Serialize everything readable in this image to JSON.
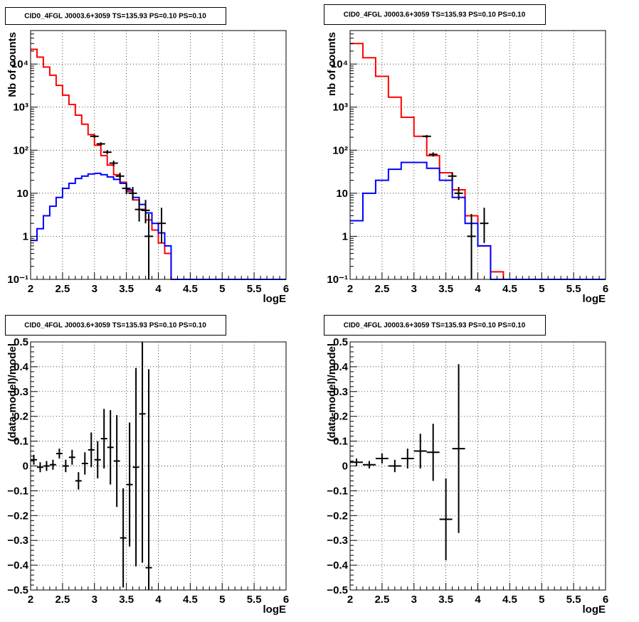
{
  "chart_data": [
    {
      "type": "histogram",
      "title": "CID0_4FGL J0003.6+3059 TS=135.93 PS=0.10 PS=0.10",
      "xlabel": "logE",
      "ylabel": "Nb of counts",
      "xlim": [
        2,
        6
      ],
      "ylim": [
        0.1,
        60000
      ],
      "yscale": "log",
      "grid": true,
      "xticks": [
        "2",
        "2.5",
        "3",
        "3.5",
        "4",
        "4.5",
        "5",
        "5.5",
        "6"
      ],
      "yticks": [
        {
          "v": 0.1,
          "label": "10⁻¹"
        },
        {
          "v": 1,
          "label": "1"
        },
        {
          "v": 10,
          "label": "10"
        },
        {
          "v": 100,
          "label": "10²"
        },
        {
          "v": 1000,
          "label": "10³"
        },
        {
          "v": 10000,
          "label": "10⁴"
        }
      ],
      "bin_edges": [
        2.0,
        2.1,
        2.2,
        2.3,
        2.4,
        2.5,
        2.6,
        2.7,
        2.8,
        2.9,
        3.0,
        3.1,
        3.2,
        3.3,
        3.4,
        3.5,
        3.6,
        3.7,
        3.8,
        3.9,
        4.0,
        4.1,
        4.2,
        4.3,
        4.4,
        4.5,
        4.6,
        4.7,
        4.8,
        4.9,
        5.0,
        5.1,
        5.2,
        5.3,
        5.4,
        5.5,
        5.6,
        5.7,
        5.8,
        5.9,
        6.0
      ],
      "series": [
        {
          "role": "model",
          "color": "#ff0000",
          "values": [
            22000,
            14500,
            8500,
            5500,
            3200,
            1900,
            1150,
            650,
            400,
            230,
            130,
            75,
            45,
            27,
            18,
            11,
            7,
            4.2,
            2.4,
            1.4,
            0.7,
            0.4,
            0.1,
            0.1,
            0.1,
            0.1,
            0.1,
            0.1,
            0.1,
            0.1,
            0.1,
            0.1,
            0.1,
            0.1,
            0.1,
            0.1,
            0.1,
            0.1,
            0.1,
            0.1
          ]
        },
        {
          "role": "source",
          "color": "#0000ff",
          "values": [
            0.8,
            1.5,
            3,
            5,
            8,
            13,
            17,
            22,
            25,
            28,
            29,
            27,
            24,
            21,
            17,
            12,
            8,
            5.5,
            3.5,
            2,
            1.2,
            0.6,
            0.1,
            0.1,
            0.1,
            0.1,
            0.1,
            0.1,
            0.1,
            0.1,
            0.1,
            0.1,
            0.1,
            0.1,
            0.1,
            0.1,
            0.1,
            0.1,
            0.1,
            0.1
          ]
        },
        {
          "role": "data",
          "color": "#000000",
          "points": [
            {
              "x": 3.0,
              "y": 210,
              "elo": 15,
              "ehi": 15
            },
            {
              "x": 3.1,
              "y": 140,
              "elo": 12,
              "ehi": 12
            },
            {
              "x": 3.2,
              "y": 90,
              "elo": 10,
              "ehi": 10
            },
            {
              "x": 3.3,
              "y": 50,
              "elo": 7,
              "ehi": 7
            },
            {
              "x": 3.4,
              "y": 25,
              "elo": 5,
              "ehi": 5
            },
            {
              "x": 3.5,
              "y": 13,
              "elo": 3.5,
              "ehi": 4
            },
            {
              "x": 3.6,
              "y": 10,
              "elo": 3,
              "ehi": 4
            },
            {
              "x": 3.7,
              "y": 4.2,
              "elo": 2,
              "ehi": 3
            },
            {
              "x": 3.8,
              "y": 4,
              "elo": 2,
              "ehi": 3
            },
            {
              "x": 3.85,
              "y": 1,
              "elo": 0.9,
              "ehi": 2.3
            },
            {
              "x": 4.05,
              "y": 2,
              "elo": 1.3,
              "ehi": 2.6
            }
          ]
        }
      ]
    },
    {
      "type": "histogram",
      "title": "CID0_4FGL J0003.6+3059 TS=135.93 PS=0.10 PS=0.10",
      "xlabel": "logE",
      "ylabel": "nb of counts",
      "xlim": [
        2,
        6
      ],
      "ylim": [
        0.1,
        60000
      ],
      "yscale": "log",
      "grid": true,
      "xticks": [
        "2",
        "2.5",
        "3",
        "3.5",
        "4",
        "4.5",
        "5",
        "5.5",
        "6"
      ],
      "yticks": [
        {
          "v": 0.1,
          "label": "10⁻¹"
        },
        {
          "v": 1,
          "label": "1"
        },
        {
          "v": 10,
          "label": "10"
        },
        {
          "v": 100,
          "label": "10²"
        },
        {
          "v": 1000,
          "label": "10³"
        },
        {
          "v": 10000,
          "label": "10⁴"
        }
      ],
      "bin_edges": [
        2.0,
        2.2,
        2.4,
        2.6,
        2.8,
        3.0,
        3.2,
        3.4,
        3.6,
        3.8,
        4.0,
        4.2,
        4.4,
        4.6,
        4.8,
        5.0,
        5.2,
        5.4,
        5.6,
        5.8,
        6.0
      ],
      "series": [
        {
          "role": "model",
          "color": "#ff0000",
          "values": [
            30000,
            14000,
            5200,
            1700,
            580,
            210,
            75,
            30,
            12,
            3,
            0.6,
            0.15,
            0.1,
            0.1,
            0.1,
            0.1,
            0.1,
            0.1,
            0.1,
            0.1
          ]
        },
        {
          "role": "source",
          "color": "#0000ff",
          "values": [
            2.3,
            10,
            20,
            36,
            52,
            52,
            38,
            20,
            8,
            2,
            0.6,
            0.1,
            0.1,
            0.1,
            0.1,
            0.1,
            0.1,
            0.1,
            0.1,
            0.1
          ]
        },
        {
          "role": "data",
          "color": "#000000",
          "points": [
            {
              "x": 3.2,
              "y": 210,
              "elo": 15,
              "ehi": 15
            },
            {
              "x": 3.3,
              "y": 80,
              "elo": 9,
              "ehi": 9
            },
            {
              "x": 3.6,
              "y": 25,
              "elo": 5,
              "ehi": 5
            },
            {
              "x": 3.7,
              "y": 10,
              "elo": 3,
              "ehi": 4
            },
            {
              "x": 3.9,
              "y": 1,
              "elo": 0.9,
              "ehi": 2.3
            },
            {
              "x": 4.1,
              "y": 2,
              "elo": 1.3,
              "ehi": 2.6
            }
          ]
        }
      ]
    },
    {
      "type": "scatter",
      "title": "CID0_4FGL J0003.6+3059 TS=135.93 PS=0.10 PS=0.10",
      "xlabel": "logE",
      "ylabel": "(data-model)/model",
      "xlim": [
        2,
        6
      ],
      "ylim": [
        -0.5,
        0.5
      ],
      "grid": true,
      "xticks": [
        "2",
        "2.5",
        "3",
        "3.5",
        "4",
        "4.5",
        "5",
        "5.5",
        "6"
      ],
      "yticks": [
        {
          "v": -0.5,
          "label": "−0.5"
        },
        {
          "v": -0.4,
          "label": "−0.4"
        },
        {
          "v": -0.3,
          "label": "−0.3"
        },
        {
          "v": -0.2,
          "label": "−0.2"
        },
        {
          "v": -0.1,
          "label": "−0.1"
        },
        {
          "v": 0,
          "label": "0"
        },
        {
          "v": 0.1,
          "label": "0.1"
        },
        {
          "v": 0.2,
          "label": "0.2"
        },
        {
          "v": 0.3,
          "label": "0.3"
        },
        {
          "v": 0.4,
          "label": "0.4"
        },
        {
          "v": 0.5,
          "label": "0.5"
        }
      ],
      "xerr": 0.05,
      "points": [
        {
          "x": 2.05,
          "y": 0.025,
          "e": 0.02
        },
        {
          "x": 2.15,
          "y": -0.005,
          "e": 0.02
        },
        {
          "x": 2.25,
          "y": 0.0,
          "e": 0.02
        },
        {
          "x": 2.35,
          "y": 0.005,
          "e": 0.02
        },
        {
          "x": 2.45,
          "y": 0.05,
          "e": 0.02
        },
        {
          "x": 2.55,
          "y": 0.0,
          "e": 0.025
        },
        {
          "x": 2.65,
          "y": 0.035,
          "e": 0.03
        },
        {
          "x": 2.75,
          "y": -0.06,
          "e": 0.035
        },
        {
          "x": 2.85,
          "y": 0.01,
          "e": 0.045
        },
        {
          "x": 2.95,
          "y": 0.065,
          "e": 0.07
        },
        {
          "x": 3.05,
          "y": 0.025,
          "e": 0.075
        },
        {
          "x": 3.15,
          "y": 0.11,
          "e": 0.12
        },
        {
          "x": 3.25,
          "y": 0.075,
          "e": 0.15
        },
        {
          "x": 3.35,
          "y": 0.02,
          "e": 0.185
        },
        {
          "x": 3.45,
          "y": -0.29,
          "e": 0.2
        },
        {
          "x": 3.55,
          "y": -0.075,
          "e": 0.25
        },
        {
          "x": 3.65,
          "y": -0.005,
          "e": 0.4
        },
        {
          "x": 3.75,
          "y": 0.21,
          "e": 0.6
        },
        {
          "x": 3.85,
          "y": -0.41,
          "e": 0.8
        }
      ]
    },
    {
      "type": "scatter",
      "title": "CID0_4FGL J0003.6+3059 TS=135.93 PS=0.10 PS=0.10",
      "xlabel": "logE",
      "ylabel": "(data-model)/model",
      "xlim": [
        2,
        6
      ],
      "ylim": [
        -0.5,
        0.5
      ],
      "grid": true,
      "xticks": [
        "2",
        "2.5",
        "3",
        "3.5",
        "4",
        "4.5",
        "5",
        "5.5",
        "6"
      ],
      "yticks": [
        {
          "v": -0.5,
          "label": "−0.5"
        },
        {
          "v": -0.4,
          "label": "−0.4"
        },
        {
          "v": -0.3,
          "label": "−0.3"
        },
        {
          "v": -0.2,
          "label": "−0.2"
        },
        {
          "v": -0.1,
          "label": "−0.1"
        },
        {
          "v": 0,
          "label": "0"
        },
        {
          "v": 0.1,
          "label": "0.1"
        },
        {
          "v": 0.2,
          "label": "0.2"
        },
        {
          "v": 0.3,
          "label": "0.3"
        },
        {
          "v": 0.4,
          "label": "0.4"
        },
        {
          "v": 0.5,
          "label": "0.5"
        }
      ],
      "xerr": 0.1,
      "points": [
        {
          "x": 2.1,
          "y": 0.015,
          "e": 0.015
        },
        {
          "x": 2.3,
          "y": 0.005,
          "e": 0.015
        },
        {
          "x": 2.5,
          "y": 0.03,
          "e": 0.02
        },
        {
          "x": 2.7,
          "y": 0.0,
          "e": 0.025
        },
        {
          "x": 2.9,
          "y": 0.03,
          "e": 0.04
        },
        {
          "x": 3.1,
          "y": 0.06,
          "e": 0.07
        },
        {
          "x": 3.3,
          "y": 0.055,
          "e": 0.115
        },
        {
          "x": 3.5,
          "y": -0.215,
          "e": 0.165
        },
        {
          "x": 3.7,
          "y": 0.07,
          "e": 0.34
        }
      ]
    }
  ]
}
